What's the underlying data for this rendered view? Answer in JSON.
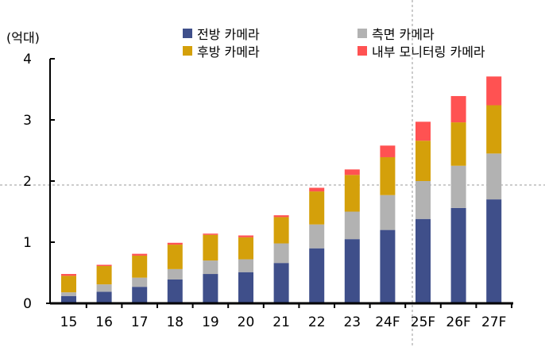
{
  "chart_data": {
    "type": "bar",
    "stacked": true,
    "unit_label": "(억대)",
    "categories": [
      "15",
      "16",
      "17",
      "18",
      "19",
      "20",
      "21",
      "22",
      "23",
      "24F",
      "25F",
      "26F",
      "27F"
    ],
    "ylim": [
      0,
      4
    ],
    "yticks": [
      "0",
      "1",
      "2",
      "3",
      "4"
    ],
    "grid": false,
    "legend_position": "top",
    "series": [
      {
        "name": "전방 카메라",
        "color": "#3f4f8a",
        "values": [
          0.12,
          0.19,
          0.27,
          0.39,
          0.48,
          0.51,
          0.66,
          0.9,
          1.05,
          1.2,
          1.38,
          1.56,
          1.7
        ]
      },
      {
        "name": "측면 카메라",
        "color": "#b2b2b2",
        "values": [
          0.06,
          0.12,
          0.15,
          0.17,
          0.22,
          0.21,
          0.32,
          0.39,
          0.45,
          0.57,
          0.62,
          0.69,
          0.75
        ]
      },
      {
        "name": "후방 카메라",
        "color": "#d4a00a",
        "values": [
          0.27,
          0.3,
          0.36,
          0.4,
          0.42,
          0.36,
          0.43,
          0.54,
          0.6,
          0.62,
          0.66,
          0.71,
          0.79
        ]
      },
      {
        "name": "내부 모니터링 카메라",
        "color": "#ff5252",
        "values": [
          0.03,
          0.02,
          0.03,
          0.03,
          0.02,
          0.03,
          0.03,
          0.06,
          0.09,
          0.19,
          0.31,
          0.43,
          0.47
        ]
      }
    ]
  }
}
